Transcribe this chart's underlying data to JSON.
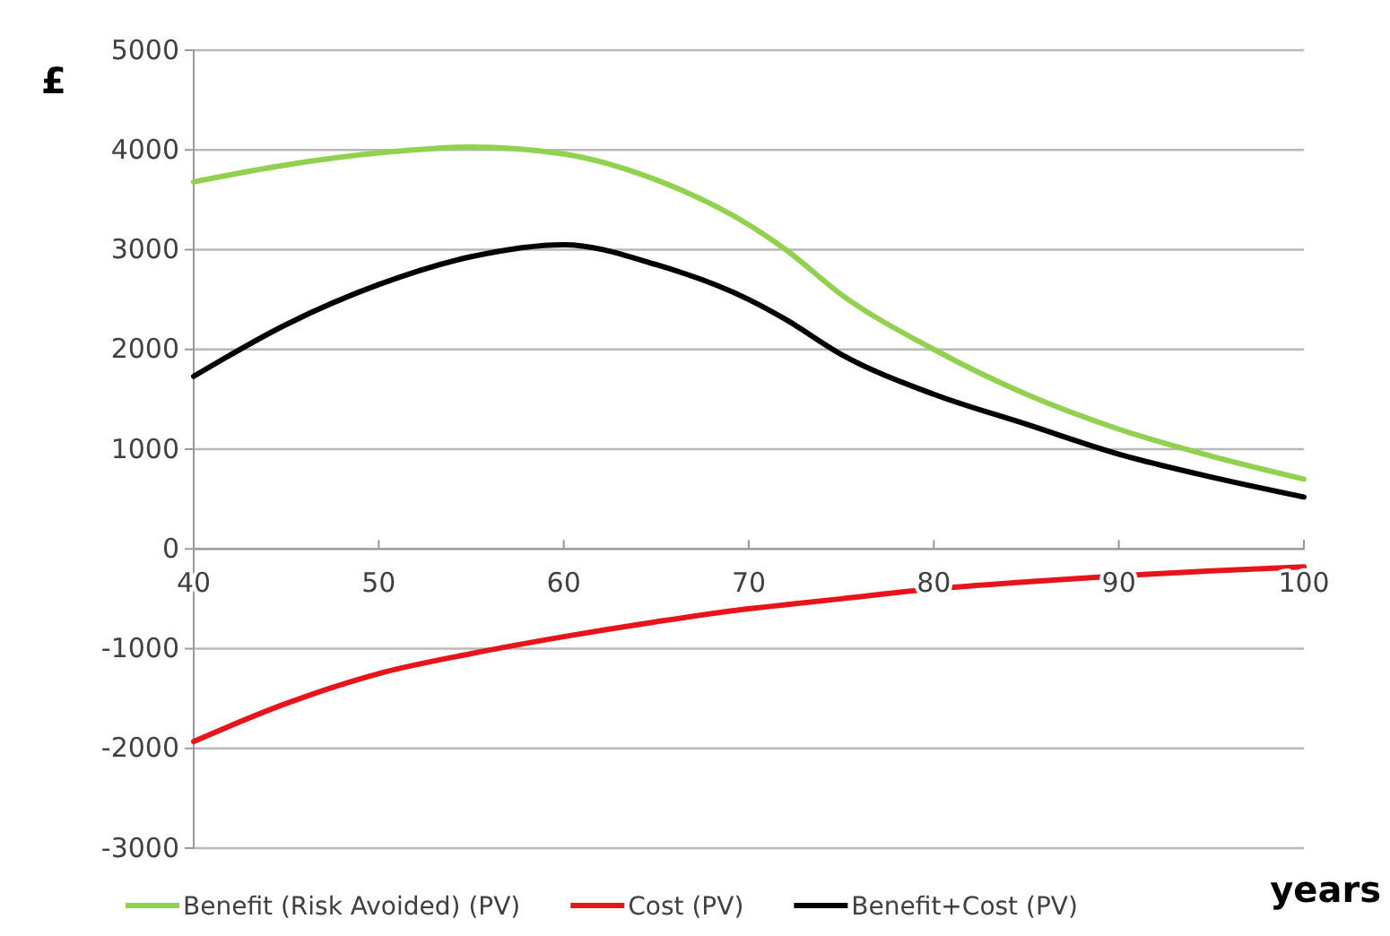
{
  "chart_data": {
    "type": "line",
    "xlabel": "years",
    "ylabel": "£",
    "x": [
      40,
      45,
      50,
      55,
      60,
      65,
      70,
      72,
      75,
      80,
      85,
      90,
      95,
      100
    ],
    "series": [
      {
        "name": "Benefit (Risk Avoided) (PV)",
        "color": "#92d050",
        "values": [
          3680,
          3850,
          3970,
          4030,
          3960,
          3700,
          3250,
          3000,
          2550,
          2000,
          1550,
          1200,
          930,
          700
        ]
      },
      {
        "name": "Cost (PV)",
        "color": "#e8141b",
        "values": [
          -1930,
          -1550,
          -1250,
          -1050,
          -880,
          -730,
          -600,
          -560,
          -500,
          -400,
          -330,
          -270,
          -220,
          -180
        ]
      },
      {
        "name": "Benefit+Cost (PV)",
        "color": "#000000",
        "values": [
          1730,
          2250,
          2650,
          2930,
          3050,
          2850,
          2500,
          2300,
          1950,
          1550,
          1250,
          950,
          720,
          520
        ]
      }
    ],
    "xlim": [
      40,
      100
    ],
    "xticks": [
      40,
      50,
      60,
      70,
      80,
      90,
      100
    ],
    "ylim": [
      -3000,
      5000
    ],
    "yticks": [
      -3000,
      -2000,
      -1000,
      0,
      1000,
      2000,
      3000,
      4000,
      5000
    ],
    "grid": "y",
    "legend": "bottom",
    "marker": "none",
    "line_style": "solid"
  }
}
